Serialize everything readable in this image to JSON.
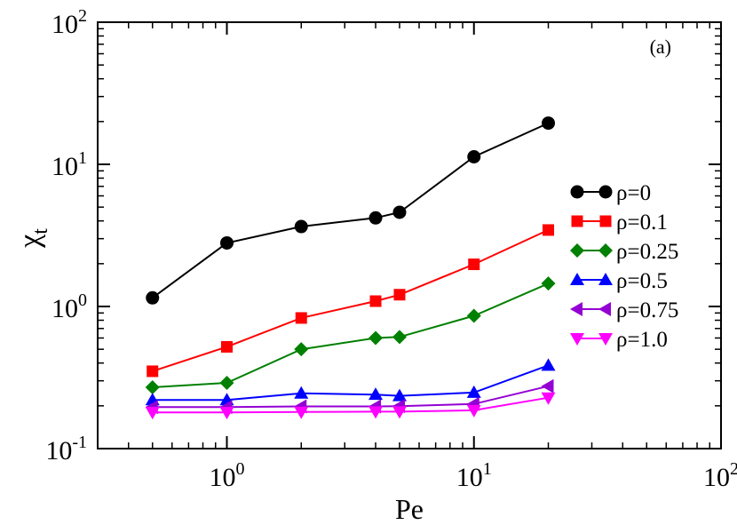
{
  "chart_data": {
    "type": "line",
    "scale": {
      "x": "log",
      "y": "log"
    },
    "xlabel": "Pe",
    "ylabel": {
      "base": "χ",
      "subscript": "t"
    },
    "xlim": [
      0.3,
      100
    ],
    "ylim": [
      0.1,
      100
    ],
    "annotation": "(a)",
    "legend_position": "right",
    "xticks": [
      {
        "value": 1,
        "base": "10",
        "exp": "0"
      },
      {
        "value": 10,
        "base": "10",
        "exp": "1"
      },
      {
        "value": 100,
        "base": "10",
        "exp": "2"
      }
    ],
    "yticks": [
      {
        "value": 0.1,
        "base": "10",
        "exp": "-1"
      },
      {
        "value": 1,
        "base": "10",
        "exp": "0"
      },
      {
        "value": 10,
        "base": "10",
        "exp": "1"
      },
      {
        "value": 100,
        "base": "10",
        "exp": "2"
      }
    ],
    "x": [
      0.5,
      1,
      2,
      4,
      5,
      10,
      20
    ],
    "series": [
      {
        "name": "ρ=0",
        "color": "#000000",
        "marker": "circle",
        "values": [
          1.15,
          2.8,
          3.65,
          4.2,
          4.6,
          11.3,
          19.5
        ]
      },
      {
        "name": "ρ=0.1",
        "color": "#ff0000",
        "marker": "square",
        "values": [
          0.35,
          0.52,
          0.83,
          1.09,
          1.21,
          1.98,
          3.45
        ]
      },
      {
        "name": "ρ=0.25",
        "color": "#008000",
        "marker": "diamond",
        "values": [
          0.27,
          0.29,
          0.5,
          0.6,
          0.61,
          0.86,
          1.45
        ]
      },
      {
        "name": "ρ=0.5",
        "color": "#0000ff",
        "marker": "triangle-up",
        "values": [
          0.22,
          0.22,
          0.245,
          0.24,
          0.235,
          0.248,
          0.385
        ]
      },
      {
        "name": "ρ=0.75",
        "color": "#9400d3",
        "marker": "triangle-left",
        "values": [
          0.196,
          0.196,
          0.198,
          0.198,
          0.199,
          0.206,
          0.275
        ]
      },
      {
        "name": "ρ=1.0",
        "color": "#ff00ff",
        "marker": "triangle-down",
        "values": [
          0.18,
          0.18,
          0.181,
          0.182,
          0.182,
          0.186,
          0.228
        ]
      }
    ]
  }
}
